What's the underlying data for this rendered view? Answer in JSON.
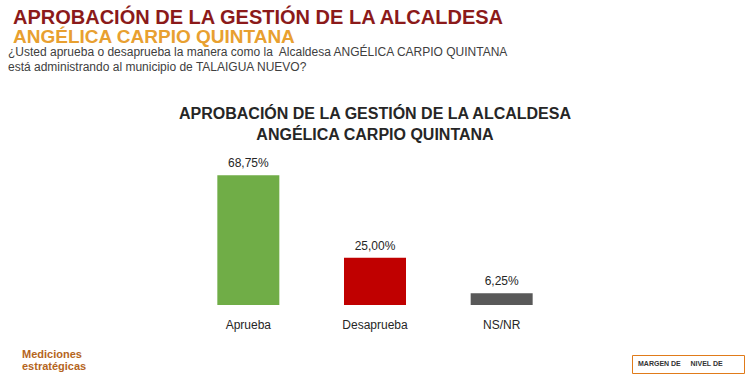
{
  "header": {
    "title": "APROBACIÓN DE LA GESTIÓN DE LA ALCALDESA",
    "subtitle": "ANGÉLICA CARPIO QUINTANA",
    "question": [
      "¿Usted aprueba o desaprueba la manera como la  Alcaldesa ANGÉLICA CARPIO QUINTANA",
      "está administrando al municipio de TALAIGUA NUEVO?"
    ]
  },
  "chart_data": {
    "type": "bar",
    "title": "APROBACIÓN DE LA GESTIÓN DE LA ALCALDESA\nANGÉLICA CARPIO QUINTANA",
    "categories": [
      "Aprueba",
      "Desaprueba",
      "NS/NR"
    ],
    "values": [
      68.75,
      25.0,
      6.25
    ],
    "value_labels": [
      "68,75%",
      "25,00%",
      "6,25%"
    ],
    "colors": [
      "#70ad47",
      "#c00000",
      "#595959"
    ],
    "ylim": [
      0,
      70
    ],
    "grid": false,
    "data_labels": true,
    "tick_labels": "x"
  },
  "footer": {
    "logo": [
      "Mediciones",
      "estratégicas"
    ],
    "note": [
      "MARGEN DE",
      "NIVEL DE"
    ]
  }
}
